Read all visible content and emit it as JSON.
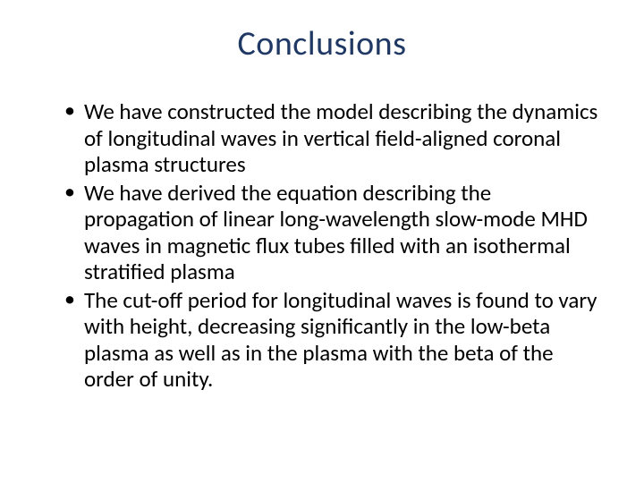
{
  "slide": {
    "title": "Conclusions",
    "title_color": "#1f3864",
    "title_fontsize": 38,
    "background_color": "#ffffff",
    "body_color": "#000000",
    "body_fontsize": 25,
    "bullets": [
      "We have constructed the model describing the dynamics of longitudinal waves in vertical field-aligned coronal plasma structures",
      "We have derived the equation describing the propagation of linear long-wavelength slow-mode MHD waves in magnetic flux tubes filled with an isothermal stratified plasma",
      "The cut-off period for longitudinal waves is found to vary with height, decreasing significantly in the low-beta plasma as well as in the plasma with the beta of the order of unity."
    ]
  }
}
